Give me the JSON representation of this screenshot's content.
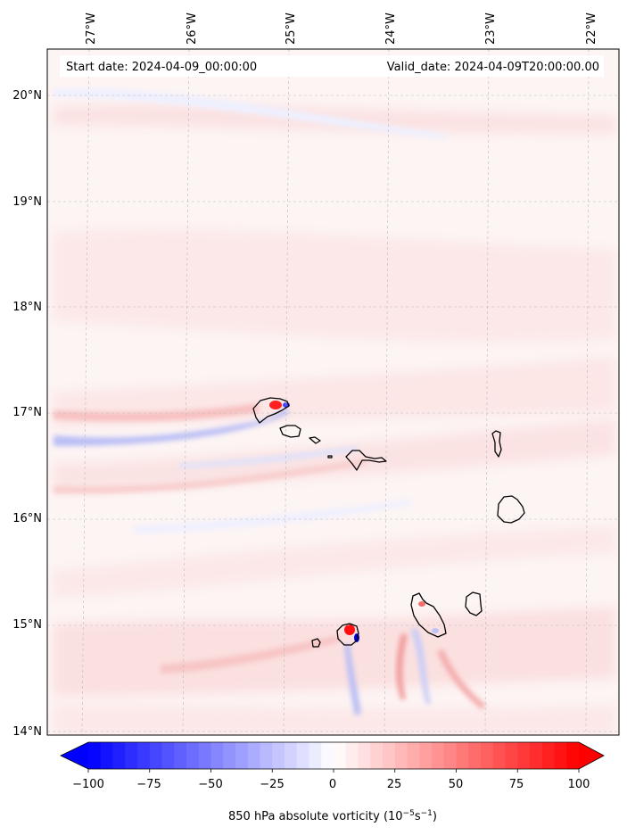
{
  "header": {
    "start_date": "Start date: 2024-04-09_00:00:00",
    "valid_date": "Valid_date: 2024-04-09T20:00:00.00"
  },
  "lon_labels": [
    "27°W",
    "26°W",
    "25°W",
    "24°W",
    "23°W",
    "22°W"
  ],
  "lat_labels": [
    "20°N",
    "19°N",
    "18°N",
    "17°N",
    "16°N",
    "15°N",
    "14°N"
  ],
  "colorbar": {
    "ticks": [
      "−100",
      "−75",
      "−50",
      "−25",
      "0",
      "25",
      "50",
      "75",
      "100"
    ],
    "label_main": "850 hPa absolute vorticity (10",
    "label_exp1": "−5",
    "label_mid": "s",
    "label_exp2": "−1",
    "label_end": ")",
    "min": -100,
    "max": 100,
    "step": 5,
    "colormap": "bwr",
    "extend": "both"
  },
  "colors": {
    "negative": "#0000ff",
    "neutral": "#ffffff",
    "positive": "#ff0000",
    "coastline": "#000000",
    "gridline": "#bbbbbb"
  }
}
